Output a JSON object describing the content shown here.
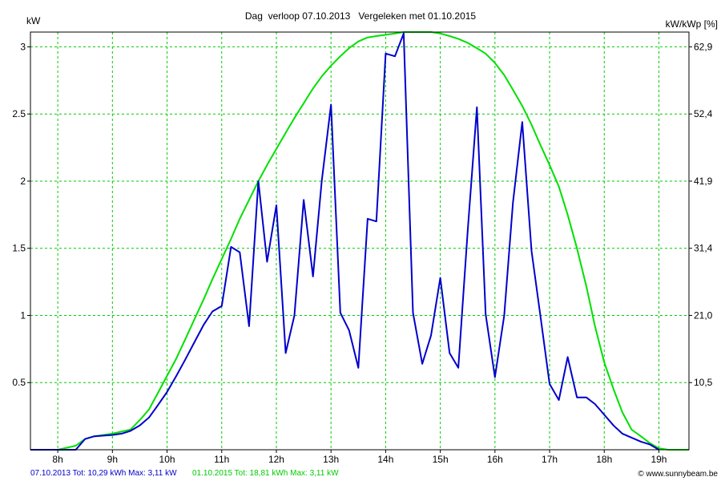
{
  "chart_data": {
    "type": "line",
    "title": "Dag  verloop 07.10.2013   Vergeleken met 01.10.2015",
    "ylabel_left": "kW",
    "ylabel_right": "kW/kWp [%]",
    "xlim": [
      7.5,
      19.55
    ],
    "ylim": [
      0,
      3.11
    ],
    "x_ticks": [
      8,
      9,
      10,
      11,
      12,
      13,
      14,
      15,
      16,
      17,
      18,
      19
    ],
    "x_tick_labels": [
      "8h",
      "9h",
      "10h",
      "11h",
      "12h",
      "13h",
      "14h",
      "15h",
      "16h",
      "17h",
      "18h",
      "19h"
    ],
    "y_ticks_left": [
      0.5,
      1,
      1.5,
      2,
      2.5,
      3
    ],
    "y_tick_labels_left": [
      "0.5",
      "1",
      "1.5",
      "2",
      "2.5",
      "3"
    ],
    "y_ticks_right": [
      0.5,
      1.0,
      1.5,
      2.0,
      2.5,
      3.0
    ],
    "y_tick_labels_right": [
      "10,5",
      "21,0",
      "31,4",
      "41,9",
      "52,4",
      "62,9"
    ],
    "grid": true,
    "series": [
      {
        "name": "01.10.2015",
        "color": "#00e000",
        "x": [
          7.5,
          8.0,
          8.33,
          8.5,
          8.67,
          9.0,
          9.33,
          9.5,
          9.67,
          9.83,
          10.0,
          10.17,
          10.33,
          10.5,
          10.67,
          10.83,
          11.0,
          11.17,
          11.33,
          11.5,
          11.67,
          11.83,
          12.0,
          12.17,
          12.33,
          12.5,
          12.67,
          12.83,
          13.0,
          13.17,
          13.33,
          13.5,
          13.67,
          13.83,
          14.0,
          14.17,
          14.33,
          14.5,
          14.67,
          14.83,
          15.0,
          15.17,
          15.33,
          15.5,
          15.67,
          15.83,
          16.0,
          16.17,
          16.33,
          16.5,
          16.67,
          16.83,
          17.0,
          17.17,
          17.33,
          17.5,
          17.67,
          17.83,
          18.0,
          18.17,
          18.33,
          18.5,
          18.67,
          18.83,
          19.0,
          19.17,
          19.55
        ],
        "values": [
          0.0,
          0.0,
          0.03,
          0.08,
          0.1,
          0.12,
          0.15,
          0.22,
          0.3,
          0.42,
          0.55,
          0.68,
          0.82,
          0.97,
          1.12,
          1.27,
          1.42,
          1.57,
          1.72,
          1.86,
          2.0,
          2.12,
          2.24,
          2.36,
          2.47,
          2.58,
          2.69,
          2.78,
          2.86,
          2.93,
          2.99,
          3.04,
          3.07,
          3.08,
          3.09,
          3.1,
          3.11,
          3.11,
          3.11,
          3.11,
          3.1,
          3.08,
          3.06,
          3.03,
          2.99,
          2.95,
          2.88,
          2.79,
          2.68,
          2.56,
          2.42,
          2.27,
          2.12,
          1.96,
          1.75,
          1.5,
          1.22,
          0.92,
          0.65,
          0.45,
          0.28,
          0.15,
          0.1,
          0.05,
          0.01,
          0.0,
          0.0
        ]
      },
      {
        "name": "07.10.2013",
        "color": "#0000cc",
        "x": [
          7.5,
          8.0,
          8.33,
          8.5,
          8.67,
          9.0,
          9.17,
          9.33,
          9.5,
          9.67,
          9.83,
          10.0,
          10.17,
          10.33,
          10.5,
          10.67,
          10.83,
          11.0,
          11.17,
          11.33,
          11.5,
          11.67,
          11.83,
          12.0,
          12.17,
          12.33,
          12.5,
          12.67,
          12.83,
          13.0,
          13.17,
          13.33,
          13.5,
          13.67,
          13.83,
          14.0,
          14.17,
          14.33,
          14.5,
          14.67,
          14.83,
          15.0,
          15.17,
          15.33,
          15.5,
          15.67,
          15.83,
          16.0,
          16.17,
          16.33,
          16.5,
          16.67,
          16.83,
          17.0,
          17.17,
          17.33,
          17.5,
          17.67,
          17.83,
          18.0,
          18.17,
          18.33,
          18.5,
          18.67,
          18.83,
          19.0
        ],
        "values": [
          0.0,
          0.0,
          0.0,
          0.08,
          0.1,
          0.11,
          0.12,
          0.14,
          0.18,
          0.24,
          0.33,
          0.43,
          0.55,
          0.67,
          0.8,
          0.93,
          1.03,
          1.07,
          1.51,
          1.47,
          0.92,
          2.0,
          1.4,
          1.82,
          0.72,
          1.0,
          1.86,
          1.29,
          2.0,
          2.57,
          1.02,
          0.89,
          0.61,
          1.72,
          1.7,
          2.95,
          2.93,
          3.1,
          1.02,
          0.64,
          0.85,
          1.28,
          0.72,
          0.61,
          1.62,
          2.55,
          1.01,
          0.54,
          1.0,
          1.84,
          2.44,
          1.48,
          1.0,
          0.49,
          0.37,
          0.69,
          0.39,
          0.39,
          0.34,
          0.26,
          0.18,
          0.12,
          0.09,
          0.06,
          0.04,
          0.0
        ]
      }
    ],
    "footer": {
      "blue_text": "07.10.2013 Tot: 10,29 kWh Max: 3,11 kW",
      "green_text": "01.10.2015 Tot: 18,81 kWh Max: 3,11 kW",
      "credit": "© www.sunnybeam.be"
    }
  },
  "colors": {
    "grid": "#00cc00",
    "axis": "#000000",
    "blue_series": "#0000cc",
    "green_series": "#00e000"
  }
}
